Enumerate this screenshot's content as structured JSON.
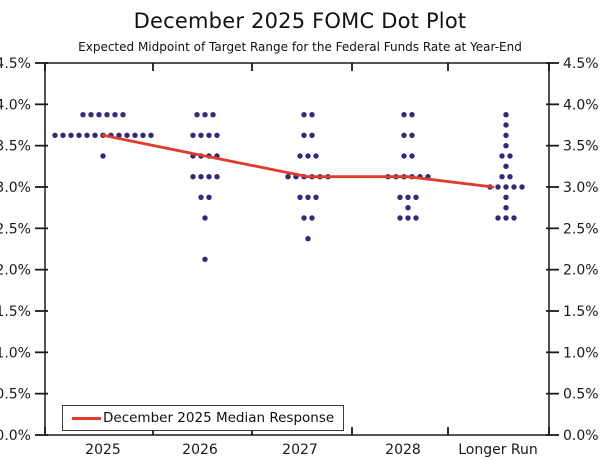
{
  "chart_data": {
    "type": "scatter",
    "title": "December 2025 FOMC Dot Plot",
    "subtitle": "Expected Midpoint of Target Range for the Federal Funds Rate at Year-End",
    "categories": [
      "2025",
      "2026",
      "2027",
      "2028",
      "Longer Run"
    ],
    "ylim": [
      0,
      4.5
    ],
    "ytick_step": 0.5,
    "ytick_labels": [
      "4.5%",
      "4.0%",
      "3.5%",
      "3.0%",
      "2.5%",
      "2.0%",
      "1.5%",
      "1.0%",
      "0.5%",
      "0.0%"
    ],
    "grid": false,
    "legend_position": "bottom-left",
    "axis_color": "#1a1a1a",
    "dot_color": "#302a7e",
    "dots": [
      {
        "category": "2025",
        "levels": [
          {
            "rate": 3.875,
            "count": 6
          },
          {
            "rate": 3.625,
            "count": 13
          },
          {
            "rate": 3.375,
            "count": 1
          }
        ]
      },
      {
        "category": "2026",
        "levels": [
          {
            "rate": 3.875,
            "count": 3
          },
          {
            "rate": 3.625,
            "count": 4
          },
          {
            "rate": 3.375,
            "count": 4
          },
          {
            "rate": 3.125,
            "count": 4
          },
          {
            "rate": 2.875,
            "count": 2
          },
          {
            "rate": 2.625,
            "count": 1
          },
          {
            "rate": 2.125,
            "count": 1
          }
        ]
      },
      {
        "category": "2027",
        "levels": [
          {
            "rate": 3.875,
            "count": 2
          },
          {
            "rate": 3.625,
            "count": 2
          },
          {
            "rate": 3.375,
            "count": 3
          },
          {
            "rate": 3.125,
            "count": 6
          },
          {
            "rate": 2.875,
            "count": 3
          },
          {
            "rate": 2.625,
            "count": 2
          },
          {
            "rate": 2.375,
            "count": 1
          }
        ]
      },
      {
        "category": "2028",
        "levels": [
          {
            "rate": 3.875,
            "count": 2
          },
          {
            "rate": 3.625,
            "count": 2
          },
          {
            "rate": 3.375,
            "count": 2
          },
          {
            "rate": 3.125,
            "count": 6
          },
          {
            "rate": 2.875,
            "count": 3
          },
          {
            "rate": 2.75,
            "count": 1
          },
          {
            "rate": 2.625,
            "count": 3
          }
        ]
      },
      {
        "category": "Longer Run",
        "levels": [
          {
            "rate": 3.875,
            "count": 1
          },
          {
            "rate": 3.75,
            "count": 1
          },
          {
            "rate": 3.625,
            "count": 1
          },
          {
            "rate": 3.5,
            "count": 1
          },
          {
            "rate": 3.375,
            "count": 2
          },
          {
            "rate": 3.25,
            "count": 1
          },
          {
            "rate": 3.125,
            "count": 2
          },
          {
            "rate": 3.0,
            "count": 5
          },
          {
            "rate": 2.875,
            "count": 1
          },
          {
            "rate": 2.75,
            "count": 1
          },
          {
            "rate": 2.625,
            "count": 3
          }
        ]
      }
    ],
    "median_series": {
      "name": "December 2025 Median Response",
      "color": "#e23b2b",
      "values": [
        3.625,
        3.375,
        3.125,
        3.125,
        3.0
      ]
    }
  }
}
